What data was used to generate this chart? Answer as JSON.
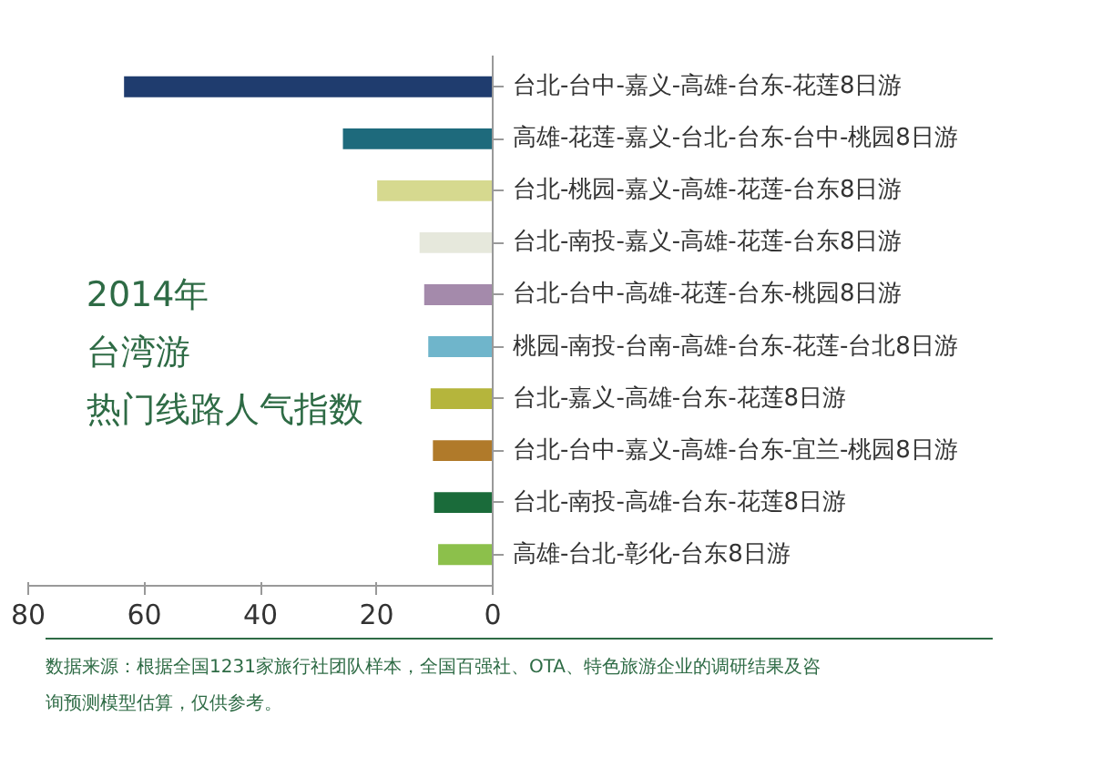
{
  "chart_data": {
    "type": "bar",
    "orientation": "horizontal",
    "title": "2014年",
    "subtitle": "台湾游",
    "categories": [
      "台北-台中-嘉义-高雄-台东-花莲8日游",
      "高雄-花莲-嘉义-台北-台东-台中-桃园8日游",
      "台北-桃园-嘉义-高雄-花莲-台东8日游",
      "台北-南投-嘉义-高雄-花莲-台东8日游",
      "台北-台中-高雄-花莲-台东-桃园8日游",
      "桃园-南投-台南-高雄-台东-花莲-台北8日游",
      "台北-嘉义-高雄-台东-花莲8日游",
      "台北-台中-嘉义-高雄-台东-宜兰-桃园8日游",
      "台北-南投-高雄-台东-花莲8日游",
      "高雄-台北-彰化-台东8日游"
    ],
    "values": [
      63.5,
      25.8,
      19.9,
      12.6,
      11.8,
      11.1,
      10.7,
      10.3,
      10.1,
      9.4
    ],
    "colors": [
      "#1f3c6e",
      "#1e6a7c",
      "#d6d98f",
      "#e6e8dc",
      "#a48aab",
      "#6fb5cb",
      "#b5b53c",
      "#b07a2a",
      "#1a6b3a",
      "#8cc04b"
    ],
    "xlim": [
      80,
      0
    ],
    "xticks": [
      80,
      60,
      40,
      20,
      0
    ],
    "grid": false,
    "annotations": [
      "热门线路人气指数",
      "数据来源：根据全国1231家旅行社团队样本，全国百强社、OTA、特色旅游企业的调研结果及咨询预测模型估算，仅供参考。"
    ]
  }
}
